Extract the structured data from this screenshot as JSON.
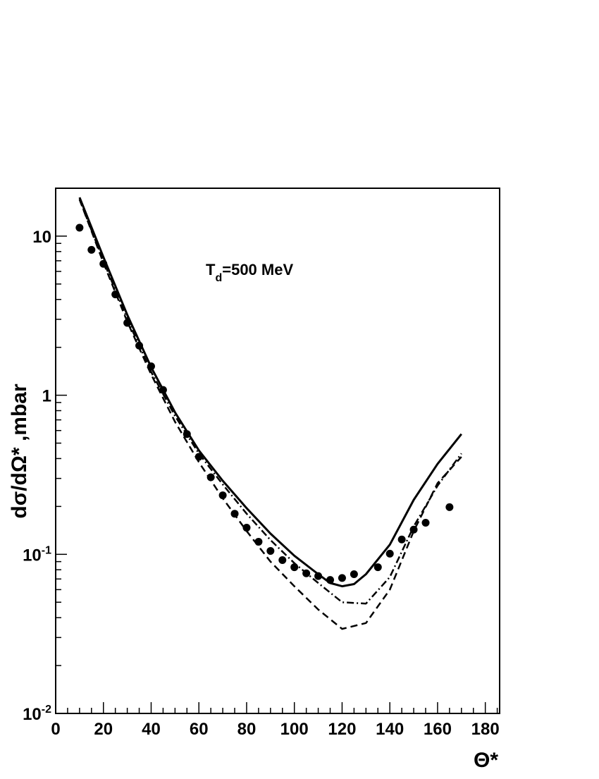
{
  "chart_data": {
    "type": "scatter",
    "title": "",
    "xlabel": "Θ*",
    "ylabel": "dσ/dΩ* ,mbar",
    "annotation": {
      "main": "T",
      "sub": "d",
      "rest": "=500 MeV"
    },
    "xlim": [
      0,
      186
    ],
    "ylim": [
      0.01,
      20
    ],
    "yscale": "log",
    "grid": false,
    "x_ticks": [
      0,
      20,
      40,
      60,
      80,
      100,
      120,
      140,
      160,
      180
    ],
    "x_tick_labels": [
      "0",
      "20",
      "40",
      "60",
      "80",
      "100",
      "120",
      "140",
      "160",
      "180"
    ],
    "y_ticks": [
      {
        "value": 0.01,
        "base": "10",
        "exp": "-2"
      },
      {
        "value": 0.1,
        "base": "10",
        "exp": "-1"
      },
      {
        "value": 1,
        "base": "1",
        "exp": ""
      },
      {
        "value": 10,
        "base": "10",
        "exp": ""
      }
    ],
    "series": [
      {
        "style": "points",
        "color": "#000000",
        "x": [
          10,
          15,
          20,
          25,
          30,
          35,
          40,
          45,
          55,
          60,
          65,
          70,
          75,
          80,
          85,
          90,
          95,
          100,
          105,
          110,
          115,
          120,
          125,
          135,
          140,
          145,
          150,
          155,
          165
        ],
        "y": [
          11.3,
          8.2,
          6.7,
          4.3,
          2.85,
          2.05,
          1.52,
          1.08,
          0.57,
          0.41,
          0.305,
          0.235,
          0.18,
          0.147,
          0.12,
          0.105,
          0.092,
          0.083,
          0.076,
          0.073,
          0.069,
          0.071,
          0.075,
          0.083,
          0.101,
          0.124,
          0.143,
          0.158,
          0.198
        ]
      },
      {
        "style": "solid",
        "color": "#000000",
        "x": [
          10,
          20,
          30,
          40,
          50,
          60,
          70,
          80,
          90,
          100,
          110,
          115,
          120,
          125,
          130,
          140,
          150,
          160,
          170
        ],
        "y": [
          17.5,
          7.4,
          3.2,
          1.5,
          0.78,
          0.45,
          0.29,
          0.195,
          0.135,
          0.098,
          0.075,
          0.066,
          0.063,
          0.065,
          0.075,
          0.115,
          0.22,
          0.37,
          0.57
        ]
      },
      {
        "style": "dashdot",
        "color": "#000000",
        "x": [
          10,
          20,
          30,
          40,
          50,
          60,
          70,
          80,
          90,
          100,
          110,
          120,
          130,
          140,
          150,
          160,
          170
        ],
        "y": [
          17.0,
          7.0,
          3.0,
          1.4,
          0.74,
          0.43,
          0.275,
          0.18,
          0.123,
          0.088,
          0.066,
          0.05,
          0.049,
          0.072,
          0.15,
          0.27,
          0.43
        ]
      },
      {
        "style": "dashed",
        "color": "#000000",
        "x": [
          10,
          20,
          30,
          40,
          50,
          60,
          70,
          80,
          90,
          100,
          110,
          120,
          130,
          140,
          150,
          160,
          170
        ],
        "y": [
          17.0,
          6.8,
          2.9,
          1.35,
          0.68,
          0.38,
          0.225,
          0.14,
          0.09,
          0.063,
          0.045,
          0.034,
          0.037,
          0.06,
          0.14,
          0.28,
          0.41
        ]
      }
    ]
  }
}
